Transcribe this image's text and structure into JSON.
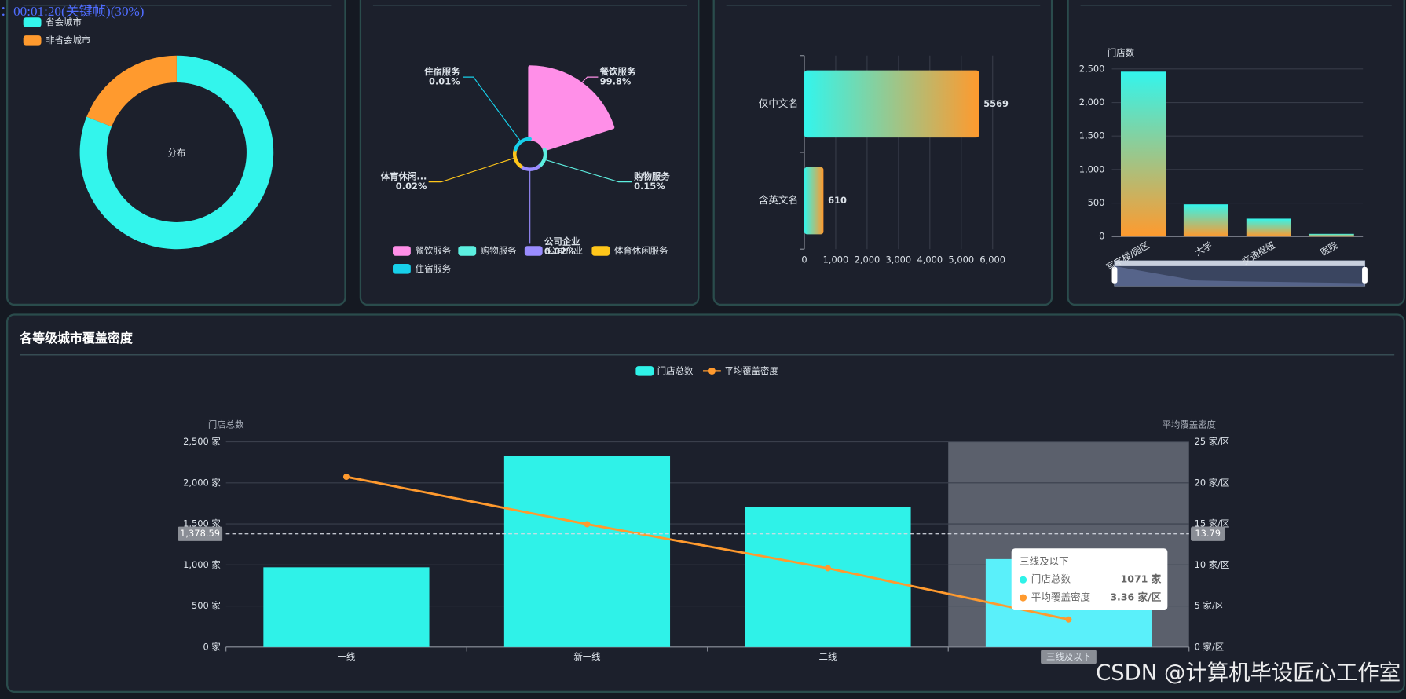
{
  "overlay": "：00:01:20(关键帧)(30%)",
  "watermark": "CSDN @计算机毕设匠心工作室",
  "chart_data": [
    {
      "type": "donut",
      "center_label": "分布",
      "categories": [
        "省会城市",
        "非省会城市"
      ],
      "values": [
        81,
        19
      ],
      "colors": [
        "#33f5ec",
        "#ff9a2e"
      ]
    },
    {
      "type": "rose",
      "categories": [
        "餐饮服务",
        "购物服务",
        "公司企业",
        "体育休闲服务",
        "住宿服务"
      ],
      "label_names": [
        "餐饮服务",
        "购物服务",
        "公司企业",
        "体育休闲...",
        "住宿服务"
      ],
      "values": [
        99.8,
        0.15,
        0.02,
        0.02,
        0.01
      ],
      "value_labels": [
        "99.8%",
        "0.15%",
        "0.02%",
        "0.02%",
        "0.01%"
      ],
      "colors": [
        "#ff8fe8",
        "#5cefe0",
        "#9a8cff",
        "#ffc61a",
        "#17d0ea"
      ]
    },
    {
      "type": "hbar",
      "categories": [
        "仅中文名",
        "含英文名"
      ],
      "values": [
        5569,
        610
      ],
      "xlim": [
        0,
        6000
      ],
      "xticks": [
        0,
        {
          "value": 1000,
          "label": "1,000"
        },
        {
          "value": 2000,
          "label": "2,000"
        },
        {
          "value": 3000,
          "label": "3,000"
        },
        {
          "value": 4000,
          "label": "4,000"
        },
        {
          "value": 5000,
          "label": "5,000"
        },
        {
          "value": 6000,
          "label": "6,000"
        }
      ],
      "colors": [
        "#33f5ec",
        "#ff9a2e"
      ],
      "grid": true
    },
    {
      "type": "bar",
      "y_label": "门店数",
      "categories": [
        "写字楼/园区",
        "大学",
        "交通枢纽",
        "医院"
      ],
      "values": [
        2460,
        481,
        267,
        40
      ],
      "ylim": [
        0,
        2500
      ],
      "yticks": [
        0,
        500,
        {
          "value": 1000,
          "label": "1,000"
        },
        {
          "value": 1500,
          "label": "1,500"
        },
        {
          "value": 2000,
          "label": "2,000"
        },
        {
          "value": 2500,
          "label": "2,500"
        }
      ],
      "colors": [
        "#33f5ec",
        "#ff9a2e"
      ],
      "grid": true
    },
    {
      "type": "combo",
      "title": "各等级城市覆盖密度",
      "y_label": "门店总数",
      "y2_label": "平均覆盖密度",
      "categories": [
        "一线",
        "新一线",
        "二线",
        "三线及以下"
      ],
      "series": [
        {
          "name": "门店总数",
          "type": "bar",
          "color": "#2ff2e8",
          "values": [
            971,
            2325,
            1703,
            1071
          ]
        },
        {
          "name": "平均覆盖密度",
          "type": "line",
          "color": "#ff9a2e",
          "axis": "y2",
          "values": [
            20.74,
            14.96,
            9.6,
            3.36
          ]
        }
      ],
      "ylim": [
        0,
        2500
      ],
      "yticks": [
        {
          "value": 0,
          "label": "0 家"
        },
        {
          "value": 500,
          "label": "500 家"
        },
        {
          "value": 1000,
          "label": "1,000 家"
        },
        {
          "value": 1500,
          "label": "1,500 家"
        },
        {
          "value": 2000,
          "label": "2,000 家"
        },
        {
          "value": 2500,
          "label": "2,500 家"
        }
      ],
      "y2lim": [
        0,
        25
      ],
      "y2ticks": [
        {
          "value": 0,
          "label": "0 家/区"
        },
        {
          "value": 5,
          "label": "5 家/区"
        },
        {
          "value": 10,
          "label": "10 家/区"
        },
        {
          "value": 15,
          "label": "15 家/区"
        },
        {
          "value": 20,
          "label": "20 家/区"
        },
        {
          "value": 25,
          "label": "25 家/区"
        }
      ],
      "mark_lines": [
        {
          "value": 1378.59,
          "label": "1,378.59"
        },
        {
          "value": 13.79,
          "label": "13.79",
          "axis": "y2"
        }
      ],
      "highlight_index": 3,
      "tooltip": {
        "labels": [
          "1071 家",
          "3.36 家/区"
        ]
      },
      "grid": true
    }
  ]
}
